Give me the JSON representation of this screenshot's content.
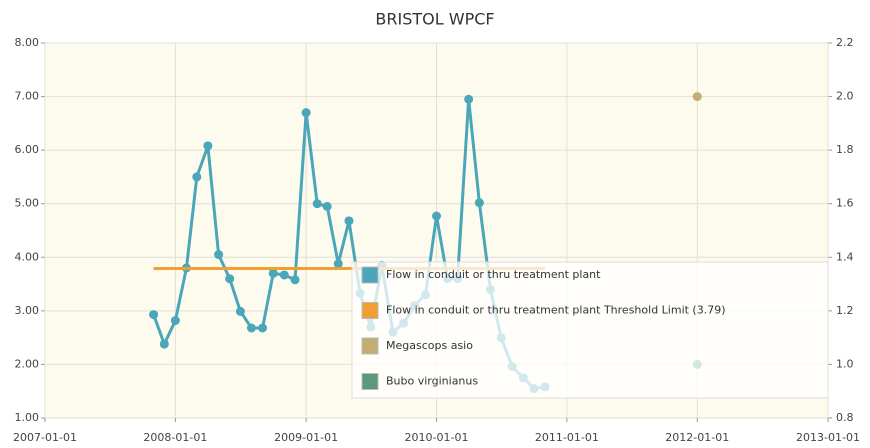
{
  "chart_data": {
    "type": "line",
    "title": "BRISTOL WPCF",
    "xlim": [
      "2007-01-01",
      "2013-01-01"
    ],
    "xticks": [
      "2007-01-01",
      "2008-01-01",
      "2009-01-01",
      "2010-01-01",
      "2011-01-01",
      "2012-01-01",
      "2013-01-01"
    ],
    "ylim": [
      1,
      8
    ],
    "yticks": [
      {
        "value": 1,
        "label": "1.00"
      },
      {
        "value": 2,
        "label": "2.00"
      },
      {
        "value": 3,
        "label": "3.00"
      },
      {
        "value": 4,
        "label": "4.00"
      },
      {
        "value": 5,
        "label": "5.00"
      },
      {
        "value": 6,
        "label": "6.00"
      },
      {
        "value": 7,
        "label": "7.00"
      },
      {
        "value": 8,
        "label": "8.00"
      }
    ],
    "y2lim": [
      0.8,
      2.2
    ],
    "y2ticks": [
      0.8,
      {
        "value": 1,
        "label": "1.0"
      },
      1.2,
      1.4,
      1.6,
      1.8,
      {
        "value": 2,
        "label": "2.0"
      },
      2.2
    ],
    "grid": true,
    "legend": "bottom-right",
    "series": [
      {
        "name": "Flow in conduit or thru treatment plant",
        "color": "#4aa6b8",
        "x": [
          "2007-11-01",
          "2007-12-01",
          "2008-01-01",
          "2008-02-01",
          "2008-03-01",
          "2008-04-01",
          "2008-05-01",
          "2008-06-01",
          "2008-07-01",
          "2008-08-01",
          "2008-09-01",
          "2008-10-01",
          "2008-11-01",
          "2008-12-01",
          "2009-01-01",
          "2009-02-01",
          "2009-03-01",
          "2009-04-01",
          "2009-05-01",
          "2009-06-01",
          "2009-07-01",
          "2009-08-01",
          "2009-09-01",
          "2009-10-01",
          "2009-11-01",
          "2009-12-01",
          "2010-01-01",
          "2010-02-01",
          "2010-03-01",
          "2010-04-01",
          "2010-05-01",
          "2010-06-01",
          "2010-07-01",
          "2010-08-01",
          "2010-09-01",
          "2010-10-01",
          "2010-11-01"
        ],
        "values": [
          2.93,
          2.38,
          2.82,
          3.8,
          5.5,
          6.08,
          4.05,
          3.6,
          2.99,
          2.68,
          2.68,
          3.7,
          3.67,
          3.58,
          6.7,
          5.0,
          4.95,
          3.88,
          4.68,
          3.33,
          2.7,
          3.85,
          2.6,
          2.77,
          3.1,
          3.3,
          4.77,
          3.6,
          3.6,
          6.95,
          5.02,
          3.4,
          2.5,
          1.96,
          1.75,
          1.55,
          1.58
        ]
      },
      {
        "name": "Flow in conduit or thru treatment plant Threshold Limit (3.79)",
        "color": "#f0a030",
        "x": [
          "2007-11-01",
          "2010-11-01"
        ],
        "values": [
          3.79,
          3.79
        ]
      },
      {
        "name": "Megascops asio",
        "color": "#c2ae72",
        "axis": "y2",
        "x": [
          "2012-01-01"
        ],
        "values": [
          2.0
        ]
      },
      {
        "name": "Bubo virginianus",
        "color": "#5a9a7a",
        "axis": "y2",
        "x": [
          "2012-01-01"
        ],
        "values": [
          1.0
        ]
      }
    ]
  }
}
